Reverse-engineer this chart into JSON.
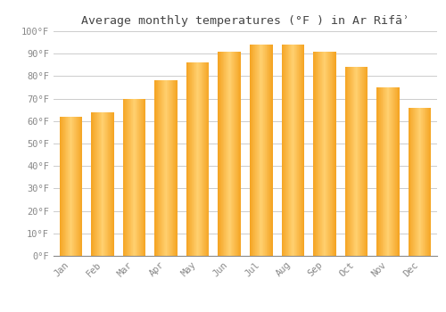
{
  "title": "Average monthly temperatures (°F ) in Ar Rifāʾ",
  "months": [
    "Jan",
    "Feb",
    "Mar",
    "Apr",
    "May",
    "Jun",
    "Jul",
    "Aug",
    "Sep",
    "Oct",
    "Nov",
    "Dec"
  ],
  "values": [
    62,
    64,
    70,
    78,
    86,
    91,
    94,
    94,
    91,
    84,
    75,
    66
  ],
  "bar_color": "#FFA500",
  "bar_color_light": "#FFD080",
  "ylim": [
    0,
    100
  ],
  "ytick_step": 10,
  "background_color": "#FFFFFF",
  "grid_color": "#CCCCCC",
  "title_fontsize": 9.5,
  "tick_fontsize": 7.5,
  "tick_color": "#888888"
}
